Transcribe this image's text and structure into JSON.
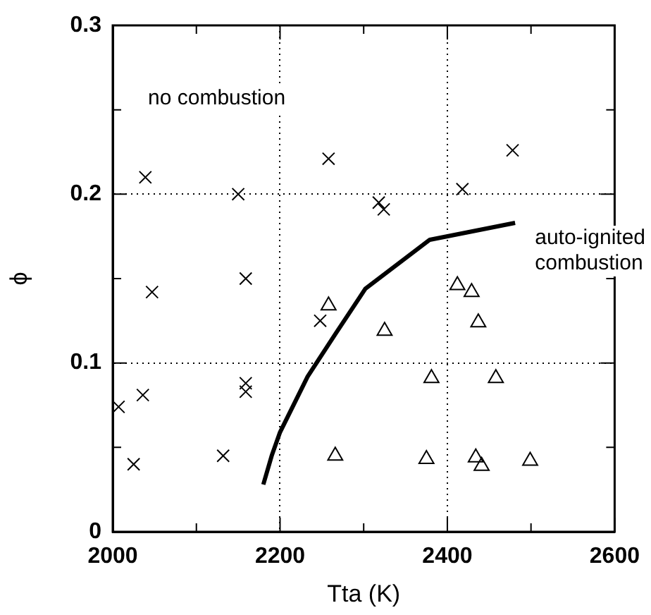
{
  "chart_data": {
    "type": "scatter",
    "xlabel": "Tta (K)",
    "ylabel": "ϕ",
    "xlim": [
      2000,
      2600
    ],
    "ylim": [
      0,
      0.3
    ],
    "xticks": [
      2000,
      {
        "value": 2100,
        "label": null
      },
      2200,
      {
        "value": 2300,
        "label": null
      },
      2400,
      {
        "value": 2500,
        "label": null
      },
      2600
    ],
    "yticks": [
      0,
      {
        "value": 0.05,
        "label": null
      },
      0.1,
      {
        "value": 0.15,
        "label": null
      },
      0.2,
      {
        "value": 0.25,
        "label": null
      },
      0.3
    ],
    "grid": true,
    "annotations": [
      "no combustion",
      "auto-ignited combustion"
    ],
    "series": [
      {
        "type": "scatter",
        "marker": "cross",
        "color": "#000000",
        "x": [
          2007,
          2025,
          2036,
          2039,
          2047,
          2132,
          2150,
          2159,
          2159,
          2159,
          2248,
          2258,
          2318,
          2324,
          2418,
          2478
        ],
        "values": [
          0.074,
          0.04,
          0.081,
          0.21,
          0.142,
          0.045,
          0.2,
          0.15,
          0.088,
          0.083,
          0.125,
          0.221,
          0.195,
          0.191,
          0.203,
          0.226
        ]
      },
      {
        "type": "scatter",
        "marker": "triangle",
        "color": "#000000",
        "x": [
          2258,
          2266,
          2325,
          2381,
          2375,
          2412,
          2429,
          2437,
          2458,
          2434,
          2441,
          2499
        ],
        "values": [
          0.134,
          0.045,
          0.119,
          0.091,
          0.043,
          0.146,
          0.142,
          0.124,
          0.091,
          0.044,
          0.039,
          0.042
        ]
      },
      {
        "type": "line",
        "marker": "none",
        "color": "#000000",
        "x": [
          2180,
          2190,
          2200,
          2233,
          2266,
          2302,
          2379,
          2481
        ],
        "values": [
          0.028,
          0.045,
          0.059,
          0.092,
          0.117,
          0.144,
          0.173,
          0.183
        ]
      }
    ]
  }
}
